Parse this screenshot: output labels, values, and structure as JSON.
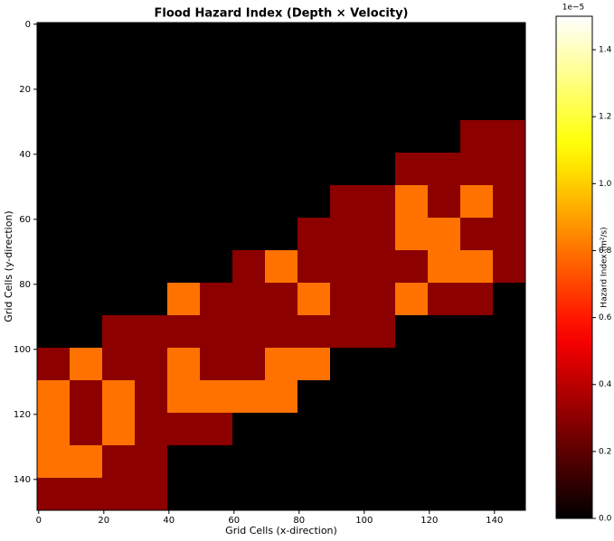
{
  "chart_data": {
    "type": "heatmap",
    "title": "Flood Hazard Index (Depth × Velocity)",
    "x_label": "Grid Cells (x-direction)",
    "y_label": "Grid Cells (y-direction)",
    "colorbar_label": "Hazard Index (m²/s)",
    "colorbar_offset": "1e−5",
    "colormap": "hot",
    "xlim": [
      -0.5,
      149.5
    ],
    "xticks": [
      0,
      20,
      40,
      60,
      80,
      100,
      120,
      140
    ],
    "ylim": [
      149.5,
      -0.5
    ],
    "yticks": [
      0,
      20,
      40,
      60,
      80,
      100,
      120,
      140
    ],
    "clim": [
      0,
      1.5
    ],
    "cticks": [
      {
        "value": 0,
        "label": "0.0"
      },
      0.2,
      0.4,
      0.6,
      0.8,
      {
        "value": 1,
        "label": "1.0"
      },
      1.2,
      1.4
    ],
    "values": [
      [
        0,
        0,
        0,
        0,
        0,
        0,
        0,
        0,
        0,
        0,
        0,
        0,
        0,
        0,
        0
      ],
      [
        0,
        0,
        0,
        0,
        0,
        0,
        0,
        0,
        0,
        0,
        0,
        0,
        0,
        0,
        0
      ],
      [
        0,
        0,
        0,
        0,
        0,
        0,
        0,
        0,
        0,
        0,
        0,
        0,
        0,
        0,
        0
      ],
      [
        0,
        0,
        0,
        0,
        0,
        0,
        0,
        0,
        0,
        0,
        0,
        0,
        0,
        0.3,
        0.3
      ],
      [
        0,
        0,
        0,
        0,
        0,
        0,
        0,
        0,
        0,
        0,
        0,
        0.3,
        0.3,
        0.3,
        0.3
      ],
      [
        0,
        0,
        0,
        0,
        0,
        0,
        0,
        0,
        0,
        0.3,
        0.3,
        0.8,
        0.3,
        0.8,
        0.3
      ],
      [
        0,
        0,
        0,
        0,
        0,
        0,
        0,
        0,
        0.3,
        0.3,
        0.3,
        0.8,
        0.8,
        0.3,
        0.3
      ],
      [
        0,
        0,
        0,
        0,
        0,
        0,
        0.3,
        0.8,
        0.3,
        0.3,
        0.3,
        0.3,
        0.8,
        0.8,
        0.3
      ],
      [
        0,
        0,
        0,
        0,
        0.8,
        0.3,
        0.3,
        0.3,
        0.8,
        0.3,
        0.3,
        0.8,
        0.3,
        0.3,
        0
      ],
      [
        0,
        0,
        0.3,
        0.3,
        0.3,
        0.3,
        0.3,
        0.3,
        0.3,
        0.3,
        0.3,
        0,
        0,
        0,
        0
      ],
      [
        0.3,
        0.8,
        0.3,
        0.3,
        0.8,
        0.3,
        0.3,
        0.8,
        0.8,
        0,
        0,
        0,
        0,
        0,
        0
      ],
      [
        0.8,
        0.3,
        0.8,
        0.3,
        0.8,
        0.8,
        0.8,
        0.8,
        0,
        0,
        0,
        0,
        0,
        0,
        0
      ],
      [
        0.8,
        0.3,
        0.8,
        0.3,
        0.3,
        0.3,
        0,
        0,
        0,
        0,
        0,
        0,
        0,
        0,
        0
      ],
      [
        0.8,
        0.8,
        0.3,
        0.3,
        0,
        0,
        0,
        0,
        0,
        0,
        0,
        0,
        0,
        0,
        0
      ],
      [
        0.3,
        0.3,
        0.3,
        0.3,
        0,
        0,
        0,
        0,
        0,
        0,
        0,
        0,
        0,
        0,
        0
      ]
    ]
  }
}
